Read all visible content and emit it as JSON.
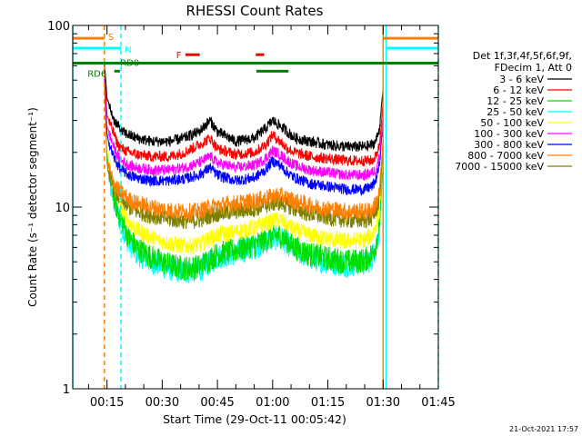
{
  "chart_data": {
    "type": "line",
    "title": "RHESSI Count Rates",
    "xlabel": "Start Time (29-Oct-11 00:05:42)",
    "ylabel": "Count Rate (s⁻¹ detector segment⁻¹)",
    "yscale": "log",
    "ylim": [
      1,
      100
    ],
    "xlim_minutes": [
      5.7,
      105
    ],
    "x_ticks": [
      {
        "label": "00:15",
        "minute": 15
      },
      {
        "label": "00:30",
        "minute": 30
      },
      {
        "label": "00:45",
        "minute": 45
      },
      {
        "label": "01:00",
        "minute": 60
      },
      {
        "label": "01:15",
        "minute": 75
      },
      {
        "label": "01:30",
        "minute": 90
      },
      {
        "label": "01:45",
        "minute": 105
      }
    ],
    "y_ticks": [
      {
        "label": "1",
        "value": 1
      },
      {
        "label": "10",
        "value": 10
      },
      {
        "label": "100",
        "value": 100
      }
    ],
    "legend_header": [
      "Det 1f,3f,4f,5f,6f,9f,",
      "FDecim 1, Att 0"
    ],
    "legend_position": "right",
    "x_minutes": [
      14.3,
      15,
      16,
      17,
      18,
      19,
      20,
      21,
      23,
      27,
      32,
      36,
      40,
      43,
      45,
      50,
      55,
      58,
      60,
      62,
      64,
      66,
      70,
      75,
      80,
      85,
      87,
      88,
      89,
      90
    ],
    "series": [
      {
        "name": "3 - 6 keV",
        "color": "#000000",
        "values": [
          62,
          40,
          34,
          30,
          28,
          26,
          25.5,
          25,
          24,
          23,
          23,
          24,
          26,
          30,
          26,
          23,
          24,
          27,
          30,
          28,
          26,
          24,
          23,
          22,
          21.5,
          21.5,
          22,
          23,
          27,
          45
        ]
      },
      {
        "name": "6 - 12 keV",
        "color": "#ff0000",
        "values": [
          60,
          32,
          28,
          25,
          22,
          21,
          20.5,
          20,
          19.5,
          19,
          19,
          20,
          22,
          24,
          21,
          19.5,
          20,
          22,
          25,
          23,
          21,
          20,
          19,
          18.5,
          18,
          18,
          18,
          19,
          22,
          38
        ]
      },
      {
        "name": "12 - 25 keV",
        "color": "#00dd00",
        "values": [
          58,
          20,
          14,
          11,
          9.5,
          8.5,
          7.5,
          6.8,
          6,
          5.3,
          4.8,
          4.6,
          4.7,
          5.2,
          5.5,
          5.8,
          6.2,
          6.6,
          6.9,
          7,
          6.5,
          6,
          5.5,
          5.2,
          5,
          5.1,
          5.5,
          6.2,
          8,
          20
        ]
      },
      {
        "name": "25 - 50 keV",
        "color": "#00ffff",
        "values": [
          57,
          19,
          13,
          10.5,
          9,
          8,
          7,
          6.3,
          5.6,
          5,
          4.6,
          4.4,
          4.5,
          5,
          5.3,
          5.6,
          6,
          6.4,
          6.7,
          6.8,
          6.3,
          5.8,
          5.3,
          5,
          4.8,
          4.9,
          5.2,
          6,
          7.5,
          18
        ]
      },
      {
        "name": "50 - 100 keV",
        "color": "#ffff00",
        "values": [
          56,
          21,
          15,
          12.5,
          11,
          10,
          9,
          8.3,
          7.5,
          6.8,
          6.3,
          6.1,
          6.2,
          6.7,
          7,
          7.3,
          7.7,
          8.1,
          8.4,
          8.5,
          8,
          7.5,
          7,
          6.7,
          6.5,
          6.6,
          7,
          7.8,
          9.5,
          22
        ]
      },
      {
        "name": "100 - 300 keV",
        "color": "#ff00ff",
        "values": [
          55,
          28,
          24,
          21,
          19,
          18,
          17.5,
          17,
          16.5,
          16,
          16,
          16.5,
          17.5,
          19,
          17.5,
          16.5,
          17,
          18.5,
          20.5,
          19.5,
          18,
          17,
          16,
          15.5,
          15,
          15,
          15.5,
          16,
          19,
          33
        ]
      },
      {
        "name": "300 - 800 keV",
        "color": "#0000ff",
        "values": [
          54,
          25,
          21,
          18.5,
          17,
          16,
          15.5,
          15,
          14.5,
          14,
          14,
          14.3,
          15,
          16.5,
          15,
          14,
          14.5,
          16,
          18,
          17,
          15.5,
          14.5,
          13.5,
          13,
          12.5,
          12.5,
          13,
          14,
          17,
          30
        ]
      },
      {
        "name": "800 - 7000 keV",
        "color": "#ff8000",
        "values": [
          53,
          18,
          15,
          13.5,
          12.5,
          12,
          11.5,
          11,
          10.5,
          10,
          9.6,
          9.4,
          9.5,
          10,
          10.2,
          10.5,
          10.8,
          11.2,
          11.5,
          11.6,
          11.2,
          10.8,
          10.2,
          9.8,
          9.5,
          9.5,
          9.7,
          10.5,
          12,
          24
        ]
      },
      {
        "name": "7000 - 15000 keV",
        "color": "#808000",
        "values": [
          52,
          17,
          14,
          12.5,
          11.5,
          11,
          10.5,
          10,
          9.5,
          9,
          8.6,
          8.4,
          8.5,
          9,
          9.2,
          9.5,
          9.8,
          10.2,
          10.5,
          10.6,
          10.2,
          9.8,
          9.2,
          8.8,
          8.5,
          8.5,
          8.7,
          9.5,
          11,
          22
        ]
      }
    ],
    "status_flags": [
      {
        "label": "S",
        "color": "#ff8000",
        "level": 85,
        "segments": [
          [
            5.7,
            14.3
          ],
          [
            90,
            105
          ]
        ]
      },
      {
        "label": "N",
        "color": "#00ffff",
        "level": 75,
        "segments": [
          [
            5.7,
            18.8
          ],
          [
            90.8,
            105
          ]
        ]
      },
      {
        "label": "F",
        "color": "#ff0000",
        "level": 69,
        "segments": [
          [
            36.3,
            40.2
          ],
          [
            55.4,
            57.7
          ]
        ]
      },
      {
        "label": "RD0",
        "color": "#008000",
        "level": 62,
        "segments": [
          [
            5.7,
            105
          ]
        ]
      },
      {
        "label": "RD6",
        "color": "#008000",
        "level": 56,
        "segments": [
          [
            17,
            18.5
          ],
          [
            55.6,
            64.3
          ]
        ]
      }
    ],
    "vertical_markers": [
      {
        "type": "attenuator",
        "color": "#ff8000",
        "style": "dashed",
        "minutes": [
          14.3
        ]
      },
      {
        "type": "attenuator",
        "color": "#ff8000",
        "style": "solid",
        "minutes": [
          90
        ]
      },
      {
        "type": "night",
        "color": "#00ffff",
        "style": "dashed",
        "minutes": [
          18.8,
          105
        ]
      },
      {
        "type": "night",
        "color": "#00ffff",
        "style": "solid",
        "minutes": [
          5.7,
          90.8
        ]
      }
    ],
    "timestamp": "21-Oct-2021 17:57"
  }
}
